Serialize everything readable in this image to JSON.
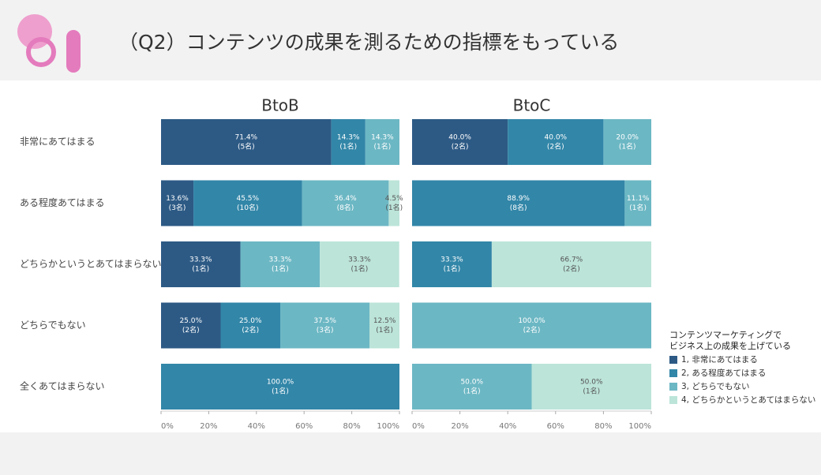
{
  "header": {
    "title": "（Q2）コンテンツの成果を測るための指標をもっている"
  },
  "chart_data": [
    {
      "type": "stacked_bar",
      "title": "BtoB",
      "categories": [
        "非常にあてはまる",
        "ある程度あてはまる",
        "どちらかというとあてはまらない",
        "どちらでもない",
        "全くあてはまらない"
      ],
      "legend_title": [
        "コンテンツマーケティングで",
        "ビジネス上の成果を上げている"
      ],
      "series": [
        {
          "name": "1, 非常にあてはまる",
          "color": "#2d5a85",
          "values": [
            71.4,
            13.6,
            33.3,
            25.0,
            0
          ],
          "value_labels": [
            "71.4%",
            "13.6%",
            "33.3%",
            "25.0%",
            null
          ],
          "count_labels": [
            "(5名)",
            "(3名)",
            "(1名)",
            "(2名)",
            null
          ]
        },
        {
          "name": "2, ある程度あてはまる",
          "color": "#3286a8",
          "values": [
            14.3,
            45.5,
            0,
            25.0,
            100.0
          ],
          "value_labels": [
            "14.3%",
            "45.5%",
            null,
            "25.0%",
            "100.0%"
          ],
          "count_labels": [
            "(1名)",
            "(10名)",
            null,
            "(2名)",
            "(1名)"
          ]
        },
        {
          "name": "3, どちらでもない",
          "color": "#6cb7c4",
          "values": [
            14.3,
            36.4,
            33.3,
            37.5,
            0
          ],
          "value_labels": [
            "14.3%",
            "36.4%",
            "33.3%",
            "37.5%",
            null
          ],
          "count_labels": [
            "(1名)",
            "(8名)",
            "(1名)",
            "(3名)",
            null
          ]
        },
        {
          "name": "4, どちらかというとあてはまらない",
          "color": "#bce4d9",
          "values": [
            0,
            4.5,
            33.3,
            12.5,
            0
          ],
          "value_labels": [
            null,
            "4.5%",
            "33.3%",
            "12.5%",
            null
          ],
          "count_labels": [
            null,
            "(1名)",
            "(1名)",
            "(1名)",
            null
          ]
        }
      ],
      "xlim": [
        0,
        100
      ],
      "xticks": [
        {
          "value": 0,
          "label": "0%"
        },
        {
          "value": 20,
          "label": "20%"
        },
        {
          "value": 40,
          "label": "40%"
        },
        {
          "value": 60,
          "label": "60%"
        },
        {
          "value": 80,
          "label": "80%"
        },
        {
          "value": 100,
          "label": "100%"
        }
      ]
    },
    {
      "type": "stacked_bar",
      "title": "BtoC",
      "series": [
        {
          "name": "1, 非常にあてはまる",
          "color": "#2d5a85",
          "values": [
            40.0,
            0,
            0,
            0,
            0
          ],
          "value_labels": [
            "40.0%",
            null,
            null,
            null,
            null
          ],
          "count_labels": [
            "(2名)",
            null,
            null,
            null,
            null
          ]
        },
        {
          "name": "2, ある程度あてはまる",
          "color": "#3286a8",
          "values": [
            40.0,
            88.9,
            33.3,
            0,
            0
          ],
          "value_labels": [
            "40.0%",
            "88.9%",
            "33.3%",
            null,
            null
          ],
          "count_labels": [
            "(2名)",
            "(8名)",
            "(1名)",
            null,
            null
          ]
        },
        {
          "name": "3, どちらでもない",
          "color": "#6cb7c4",
          "values": [
            20.0,
            11.1,
            0,
            100.0,
            50.0
          ],
          "value_labels": [
            "20.0%",
            "11.1%",
            null,
            "100.0%",
            "50.0%"
          ],
          "count_labels": [
            "(1名)",
            "(1名)",
            null,
            "(2名)",
            "(1名)"
          ]
        },
        {
          "name": "4, どちらかというとあてはまらない",
          "color": "#bce4d9",
          "values": [
            0,
            0,
            66.7,
            0,
            50.0
          ],
          "value_labels": [
            null,
            null,
            "66.7%",
            null,
            "50.0%"
          ],
          "count_labels": [
            null,
            null,
            "(2名)",
            null,
            "(1名)"
          ]
        }
      ],
      "xlim": [
        0,
        100
      ],
      "xticks": [
        {
          "value": 0,
          "label": "0%"
        },
        {
          "value": 20,
          "label": "20%"
        },
        {
          "value": 40,
          "label": "40%"
        },
        {
          "value": 60,
          "label": "60%"
        },
        {
          "value": 80,
          "label": "80%"
        },
        {
          "value": 100,
          "label": "100%"
        }
      ]
    }
  ]
}
